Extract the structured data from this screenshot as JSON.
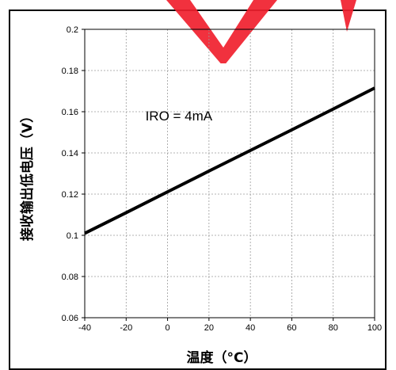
{
  "chart_data": {
    "type": "line",
    "xlabel": "温度（°C）",
    "ylabel": "接收输出低电压（V）",
    "xlim": [
      -40,
      100
    ],
    "ylim": [
      0.06,
      0.2
    ],
    "x_ticks": [
      "-40",
      "-20",
      "0",
      "20",
      "40",
      "60",
      "80",
      "100"
    ],
    "y_ticks": [
      "0.2",
      "0.18",
      "0.16",
      "0.14",
      "0.12",
      "0.1",
      "0.08",
      "0.06"
    ],
    "grid": true,
    "series": [
      {
        "name": "IRO = 4mA",
        "x": [
          -40,
          -20,
          0,
          20,
          40,
          60,
          80,
          100
        ],
        "y": [
          0.101,
          0.111,
          0.1211,
          0.1312,
          0.1412,
          0.1512,
          0.1613,
          0.1715
        ],
        "color": "#000000"
      }
    ],
    "annotations": [
      {
        "text": "IRO = 4mA",
        "x": 0,
        "y": 0.158
      }
    ]
  },
  "colors": {
    "line": "#000000",
    "grid": "#9a9a9a",
    "watermark": "#f01f2e"
  }
}
